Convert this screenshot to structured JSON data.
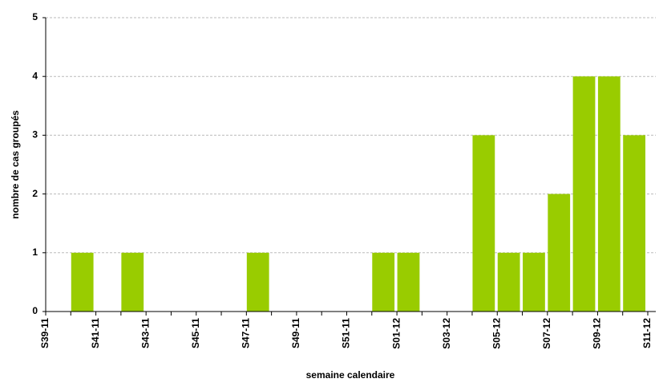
{
  "chart_data": {
    "type": "bar",
    "x_label": "semaine calendaire",
    "y_label": "nombre de cas groupés",
    "categories": [
      "S39-11",
      null,
      "S41-11",
      null,
      "S43-11",
      null,
      "S45-11",
      null,
      "S47-11",
      null,
      "S49-11",
      null,
      "S51-11",
      null,
      "S01-12",
      null,
      "S03-12",
      null,
      "S05-12",
      null,
      "S07-12",
      null,
      "S09-12",
      null,
      "S11-12"
    ],
    "values": [
      0,
      1,
      0,
      1,
      0,
      0,
      0,
      0,
      1,
      0,
      0,
      0,
      0,
      1,
      1,
      0,
      0,
      3,
      1,
      1,
      2,
      4,
      4,
      3,
      null
    ],
    "color": "#99cc00",
    "ylim": [
      0,
      5
    ],
    "yticks": [
      0,
      1,
      2,
      3,
      4,
      5
    ],
    "grid": true
  }
}
